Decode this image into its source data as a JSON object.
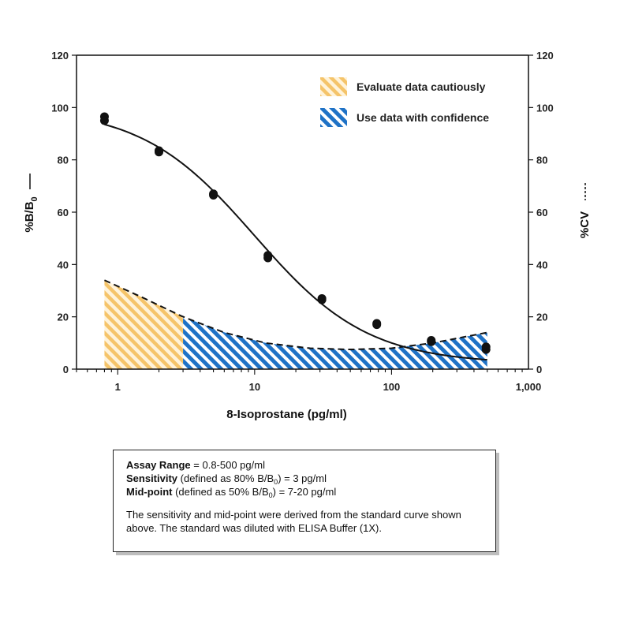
{
  "chart_data": {
    "type": "scatter",
    "x_scale": "log",
    "xlabel": "8-Isoprostane (pg/ml)",
    "ylabel": "%B/B",
    "ylabel_sub": "0",
    "y2label": "%CV",
    "xticks": [
      1,
      10,
      100,
      1000
    ],
    "xtick_labels": [
      "1",
      "10",
      "100",
      "1,000"
    ],
    "xlim": [
      0.5,
      1000
    ],
    "ylim": [
      0,
      120
    ],
    "yticks": [
      0,
      20,
      40,
      60,
      80,
      100,
      120
    ],
    "y2lim": [
      0,
      120
    ],
    "y2ticks": [
      0,
      20,
      40,
      60,
      80,
      100,
      120
    ],
    "series": [
      {
        "style": "solid",
        "axis": "left",
        "points": [
          {
            "x": 0.8,
            "y": 96.5
          },
          {
            "x": 0.8,
            "y": 95.0
          },
          {
            "x": 2.0,
            "y": 83.5
          },
          {
            "x": 2.0,
            "y": 83.0
          },
          {
            "x": 5.0,
            "y": 67.0
          },
          {
            "x": 5.0,
            "y": 66.5
          },
          {
            "x": 12.5,
            "y": 43.5
          },
          {
            "x": 12.5,
            "y": 42.5
          },
          {
            "x": 31.0,
            "y": 27.0
          },
          {
            "x": 31.0,
            "y": 26.5
          },
          {
            "x": 78.0,
            "y": 17.5
          },
          {
            "x": 78.0,
            "y": 17.0
          },
          {
            "x": 195.0,
            "y": 11.0
          },
          {
            "x": 195.0,
            "y": 10.5
          },
          {
            "x": 490.0,
            "y": 8.5
          },
          {
            "x": 490.0,
            "y": 7.5
          }
        ],
        "curve": {
          "top": 100,
          "bottom": 2,
          "ec50": 10,
          "hill": 1.05
        }
      },
      {
        "style": "dashed",
        "axis": "right",
        "x": [
          0.8,
          1.5,
          3.0,
          6.0,
          12.0,
          25.0,
          50.0,
          100.0,
          200.0,
          500.0
        ],
        "y": [
          34,
          27.5,
          20,
          14,
          10,
          8,
          7.5,
          8,
          10,
          14
        ]
      }
    ],
    "regions": [
      {
        "label": "Evaluate data cautiously",
        "x_from": 0.8,
        "x_to": 3.0,
        "color": "#f5c46a"
      },
      {
        "label": "Use data with confidence",
        "x_from": 3.0,
        "x_to": 500.0,
        "color": "#1f72c6"
      }
    ],
    "legend_position": "top-right"
  },
  "info": {
    "line1_label": "Assay Range",
    "line1_text": " = 0.8-500 pg/ml",
    "line2_label": "Sensitivity",
    "line2_pre": " (defined as 80% B/B",
    "line2_sub": "0",
    "line2_post": ") = 3 pg/ml",
    "line3_label": "Mid-point",
    "line3_pre": " (defined as 50% B/B",
    "line3_sub": "0",
    "line3_post": ") = 7-20 pg/ml",
    "note": "The sensitivity and mid-point were derived from the standard curve shown above. The standard was diluted with ELISA Buffer (1X)."
  }
}
